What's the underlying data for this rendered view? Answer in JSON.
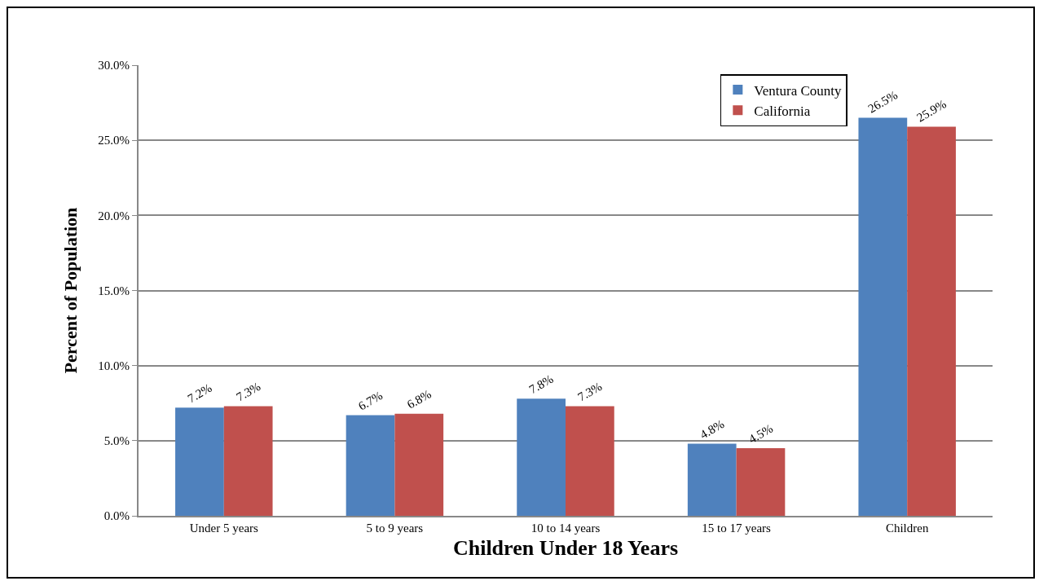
{
  "chart_data": {
    "type": "bar",
    "xlabel": "Children Under 18 Years",
    "ylabel": "Percent of Population",
    "categories": [
      "Under 5 years",
      "5 to 9 years",
      "10 to 14 years",
      "15 to 17 years",
      "Children"
    ],
    "series": [
      {
        "name": "Ventura County",
        "color": "#4f81bd",
        "values": [
          7.2,
          6.7,
          7.8,
          4.8,
          26.5
        ],
        "value_labels": [
          "7.2%",
          "6.7%",
          "7.8%",
          "4.8%",
          "26.5%"
        ]
      },
      {
        "name": "California",
        "color": "#c0504d",
        "values": [
          7.3,
          6.8,
          7.3,
          4.5,
          25.9
        ],
        "value_labels": [
          "7.3%",
          "6.8%",
          "7.3%",
          "4.5%",
          "25.9%"
        ]
      }
    ],
    "ylim": [
      0,
      30
    ],
    "yticks": [
      {
        "value": 0,
        "label": "0.0%"
      },
      {
        "value": 5,
        "label": "5.0%"
      },
      {
        "value": 10,
        "label": "10.0%"
      },
      {
        "value": 15,
        "label": "15.0%"
      },
      {
        "value": 20,
        "label": "20.0%"
      },
      {
        "value": 25,
        "label": "25.0%"
      },
      {
        "value": 30,
        "label": "30.0%"
      }
    ],
    "grid": "y",
    "legend": "top right"
  }
}
